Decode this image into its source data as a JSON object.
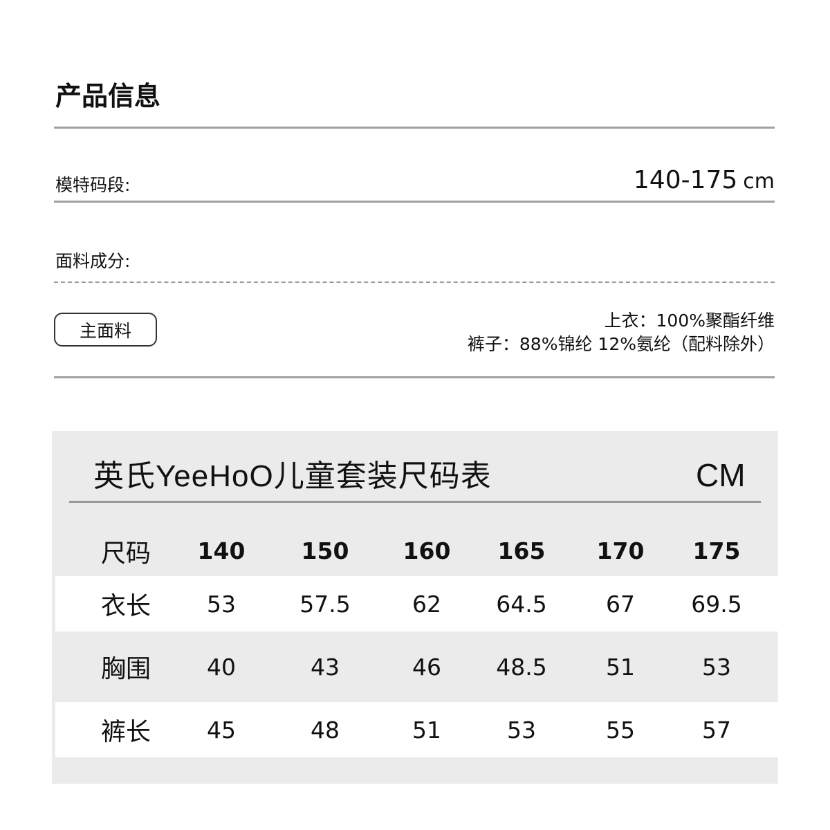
{
  "title": "产品信息",
  "model_size": {
    "label": "模特码段:",
    "value": "140-175",
    "unit": "cm"
  },
  "fabric": {
    "label": "面料成分:",
    "badge": "主面料",
    "top": "上衣：100%聚酯纤维",
    "pants": "裤子：88%锦纶 12%氨纶（配料除外）"
  },
  "size_chart": {
    "title": "英氏YeeHoO儿童套装尺码表",
    "unit": "CM",
    "header": [
      "尺码",
      "140",
      "150",
      "160",
      "165",
      "170",
      "175"
    ],
    "rows": [
      [
        "衣长",
        "53",
        "57.5",
        "62",
        "64.5",
        "67",
        "69.5"
      ],
      [
        "胸围",
        "40",
        "43",
        "46",
        "48.5",
        "51",
        "53"
      ],
      [
        "裤长",
        "45",
        "48",
        "51",
        "53",
        "55",
        "57"
      ]
    ]
  }
}
